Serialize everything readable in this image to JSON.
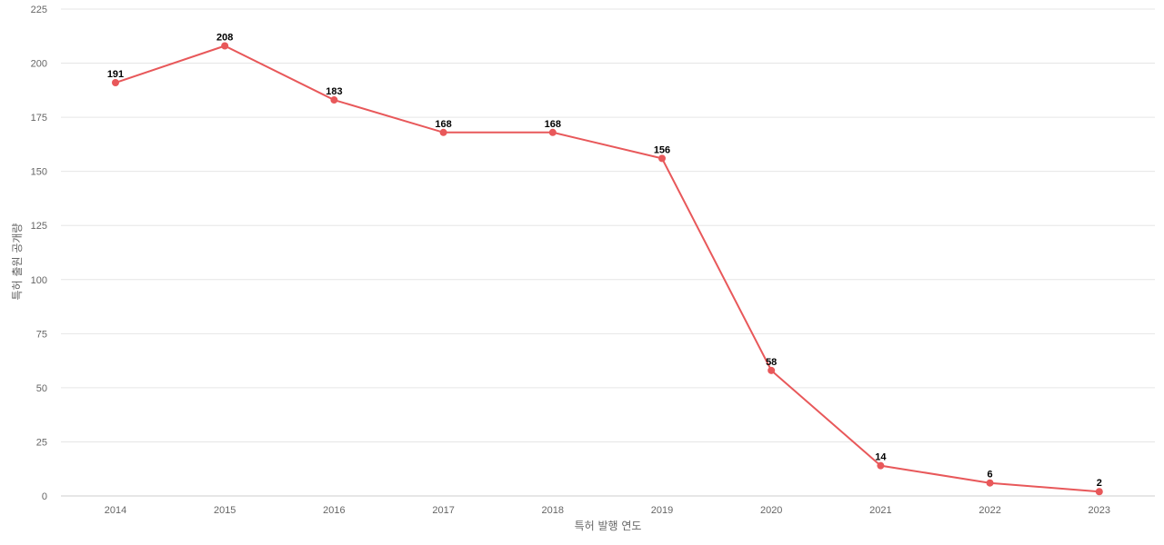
{
  "chart_data": {
    "type": "line",
    "xlabel": "특허 발행 연도",
    "ylabel": "특허 출원 공개량",
    "x": [
      "2014",
      "2015",
      "2016",
      "2017",
      "2018",
      "2019",
      "2020",
      "2021",
      "2022",
      "2023"
    ],
    "series": [
      {
        "values": [
          191,
          208,
          183,
          168,
          168,
          156,
          58,
          14,
          6,
          2
        ],
        "color": "#e8585a"
      }
    ],
    "ylim": [
      0,
      225
    ],
    "yticks": [
      0,
      25,
      50,
      75,
      100,
      125,
      150,
      175,
      200,
      225
    ],
    "data_labels": true,
    "grid": true,
    "legend": "none"
  }
}
